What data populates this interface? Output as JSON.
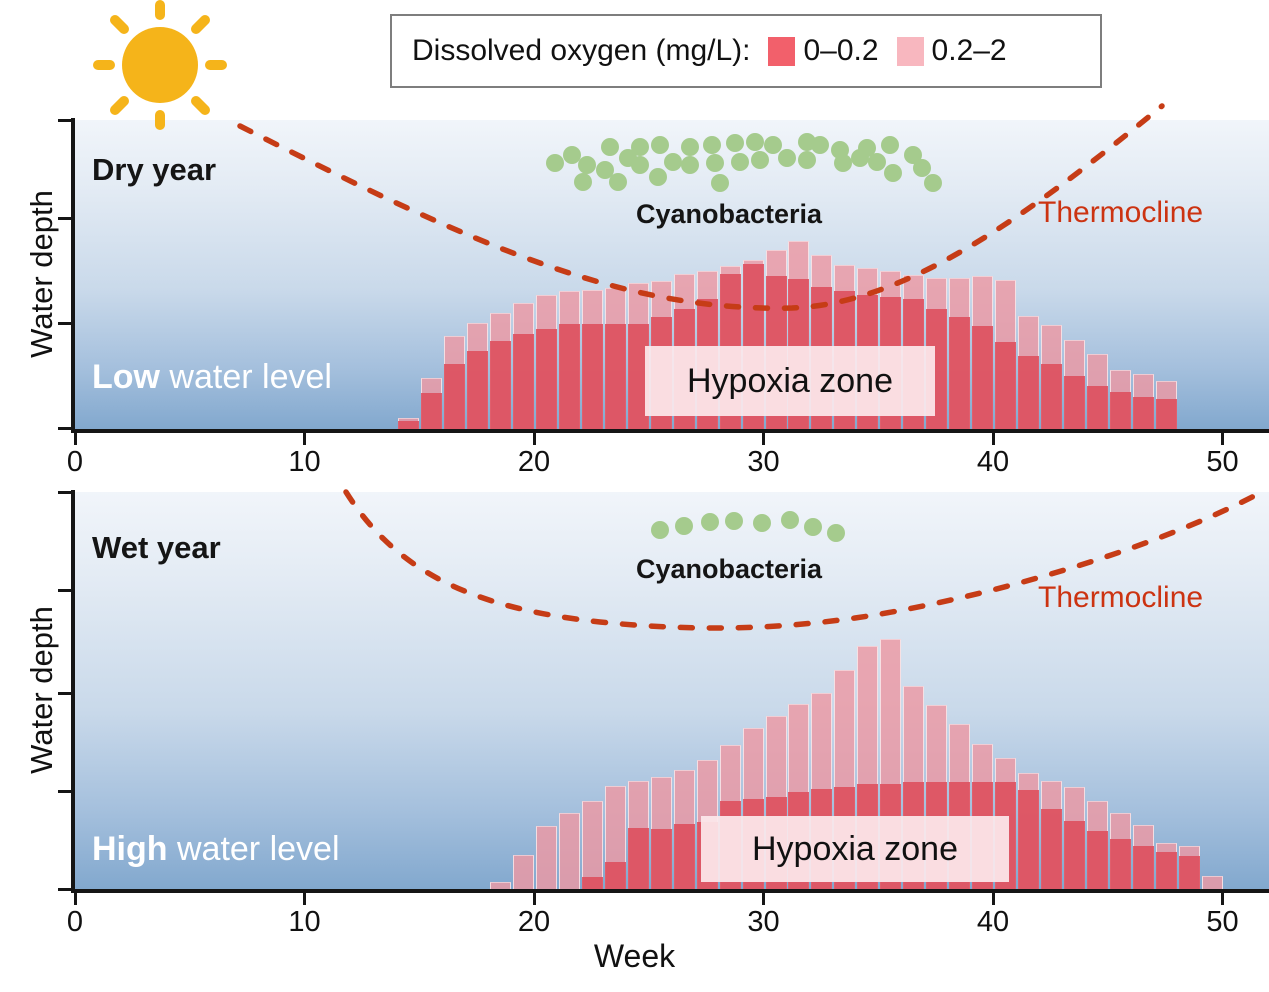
{
  "legend": {
    "title": "Dissolved oxygen (mg/L):",
    "items": [
      {
        "label": "0–0.2",
        "color": "#f2606b"
      },
      {
        "label": "0.2–2",
        "color": "#f8b7bf"
      }
    ]
  },
  "sun": {
    "color": "#f5b41a"
  },
  "axis": {
    "x_label": "Week",
    "y_label": "Water depth",
    "x_ticks": [
      "0",
      "10",
      "20",
      "30",
      "40",
      "50"
    ]
  },
  "styles": {
    "thermocline_color": "#c63c16",
    "thermocline_label_color": "#cc3311",
    "cyanobacteria_color": "#a5cb8d",
    "bar_severe_color": "rgba(221,77,92,0.88)",
    "bar_mild_color": "rgba(237,152,163,0.82)"
  },
  "panels": [
    {
      "year_label": "Dry year",
      "water_level": {
        "bold": "Low",
        "rest": " water level"
      },
      "cyanobacteria_label": "Cyanobacteria",
      "thermocline_label": "Thermocline",
      "hypoxia_label": "Hypoxia zone"
    },
    {
      "year_label": "Wet year",
      "water_level": {
        "bold": "High",
        "rest": " water level"
      },
      "cyanobacteria_label": "Cyanobacteria",
      "thermocline_label": "Thermocline",
      "hypoxia_label": "Hypoxia zone"
    }
  ],
  "chart_data": [
    {
      "type": "bar",
      "panel": "Dry year — Low water level",
      "x_unit": "week",
      "xlabel": "Week",
      "ylabel": "Water depth",
      "x_range": [
        0,
        51
      ],
      "weeks": [
        15,
        16,
        17,
        18,
        19,
        20,
        21,
        22,
        23,
        24,
        25,
        26,
        27,
        28,
        29,
        30,
        31,
        32,
        33,
        34,
        35,
        36,
        37,
        38,
        39,
        40,
        41,
        42,
        43,
        44,
        45,
        46,
        47,
        48
      ],
      "series": [
        {
          "name": "0–0.2",
          "depth_fractions": [
            0.026,
            0.117,
            0.21,
            0.252,
            0.285,
            0.307,
            0.324,
            0.34,
            0.34,
            0.34,
            0.34,
            0.362,
            0.388,
            0.421,
            0.502,
            0.534,
            0.495,
            0.485,
            0.46,
            0.447,
            0.434,
            0.427,
            0.421,
            0.388,
            0.362,
            0.333,
            0.282,
            0.236,
            0.21,
            0.172,
            0.139,
            0.12,
            0.104,
            0.097
          ]
        },
        {
          "name": "0.2–2",
          "depth_fractions": [
            0.032,
            0.162,
            0.298,
            0.34,
            0.372,
            0.405,
            0.43,
            0.443,
            0.447,
            0.453,
            0.469,
            0.476,
            0.498,
            0.508,
            0.524,
            0.544,
            0.576,
            0.605,
            0.56,
            0.527,
            0.518,
            0.508,
            0.495,
            0.485,
            0.485,
            0.492,
            0.479,
            0.362,
            0.333,
            0.285,
            0.239,
            0.188,
            0.175,
            0.152
          ]
        }
      ],
      "note": "depth_fractions = height of hypoxic zone above lakebed as fraction of water depth; second series is total hypoxic extent (DO < 2 mg/L)"
    },
    {
      "type": "bar",
      "panel": "Wet year — High water level",
      "x_unit": "week",
      "xlabel": "Week",
      "ylabel": "Water depth",
      "x_range": [
        0,
        51
      ],
      "weeks": [
        19,
        20,
        21,
        22,
        23,
        24,
        25,
        26,
        27,
        28,
        29,
        30,
        31,
        32,
        33,
        34,
        35,
        36,
        37,
        38,
        39,
        40,
        41,
        42,
        43,
        44,
        45,
        46,
        47,
        48,
        49,
        50
      ],
      "series": [
        {
          "name": "0–0.2",
          "depth_fractions": [
            0,
            0,
            0,
            0,
            0.03,
            0.068,
            0.154,
            0.151,
            0.164,
            0.169,
            0.222,
            0.227,
            0.232,
            0.244,
            0.252,
            0.257,
            0.264,
            0.264,
            0.27,
            0.27,
            0.27,
            0.27,
            0.27,
            0.249,
            0.202,
            0.171,
            0.146,
            0.126,
            0.108,
            0.093,
            0.083,
            0
          ]
        },
        {
          "name": "0.2–2",
          "depth_fractions": [
            0.015,
            0.083,
            0.156,
            0.189,
            0.219,
            0.257,
            0.27,
            0.28,
            0.297,
            0.322,
            0.36,
            0.403,
            0.433,
            0.463,
            0.491,
            0.549,
            0.61,
            0.627,
            0.509,
            0.461,
            0.413,
            0.363,
            0.327,
            0.29,
            0.27,
            0.254,
            0.219,
            0.189,
            0.159,
            0.113,
            0.106,
            0.03
          ]
        }
      ],
      "note": "depth_fractions = height of hypoxic zone above lakebed as fraction of water depth; second series is total hypoxic extent (DO < 2 mg/L)"
    }
  ],
  "cyanobacteria_dots": {
    "dry": [
      [
        555,
        163
      ],
      [
        572,
        155
      ],
      [
        587,
        165
      ],
      [
        583,
        182
      ],
      [
        605,
        170
      ],
      [
        610,
        147
      ],
      [
        618,
        182
      ],
      [
        628,
        158
      ],
      [
        640,
        147
      ],
      [
        640,
        165
      ],
      [
        660,
        145
      ],
      [
        658,
        177
      ],
      [
        673,
        162
      ],
      [
        690,
        147
      ],
      [
        690,
        165
      ],
      [
        712,
        145
      ],
      [
        715,
        163
      ],
      [
        720,
        183
      ],
      [
        735,
        143
      ],
      [
        740,
        162
      ],
      [
        755,
        142
      ],
      [
        760,
        160
      ],
      [
        773,
        145
      ],
      [
        787,
        158
      ],
      [
        807,
        142
      ],
      [
        807,
        160
      ],
      [
        820,
        145
      ],
      [
        840,
        150
      ],
      [
        843,
        163
      ],
      [
        860,
        158
      ],
      [
        867,
        148
      ],
      [
        877,
        162
      ],
      [
        890,
        145
      ],
      [
        893,
        173
      ],
      [
        913,
        155
      ],
      [
        922,
        168
      ],
      [
        933,
        183
      ]
    ],
    "wet": [
      [
        660,
        530
      ],
      [
        684,
        526
      ],
      [
        710,
        522
      ],
      [
        734,
        521
      ],
      [
        762,
        523
      ],
      [
        790,
        520
      ],
      [
        813,
        527
      ],
      [
        836,
        533
      ]
    ]
  }
}
